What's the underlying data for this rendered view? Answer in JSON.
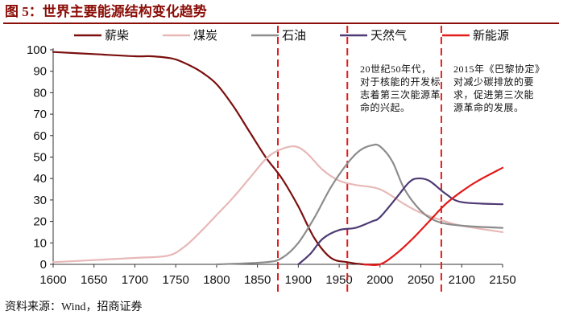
{
  "header": {
    "title": "图 5：世界主要能源结构变化趋势"
  },
  "footer": {
    "source": "资料来源：Wind，招商证券"
  },
  "annotations": {
    "a1950": "20世纪50年代，对于核能的开发标志着第三次能源革命的兴起。",
    "a2015": "2015年《巴黎协定》对减少碳排放的要求，促进第三次能源革命的发展。"
  },
  "chart_data": {
    "type": "line",
    "title": "世界主要能源结构变化趋势",
    "xlabel": "",
    "ylabel": "",
    "xlim": [
      1600,
      2150
    ],
    "ylim": [
      0,
      100
    ],
    "xticks": [
      1600,
      1650,
      1700,
      1750,
      1800,
      1850,
      1900,
      1950,
      2000,
      2050,
      2100,
      2150
    ],
    "yticks": [
      0,
      10,
      20,
      30,
      40,
      50,
      60,
      70,
      80,
      90,
      100
    ],
    "grid": false,
    "legend": "top",
    "vlines": [
      1875,
      1960,
      2075
    ],
    "series": [
      {
        "name": "薪柴",
        "color": "#7B0F0F",
        "points": [
          [
            1600,
            99
          ],
          [
            1650,
            98
          ],
          [
            1700,
            97
          ],
          [
            1720,
            97
          ],
          [
            1745,
            96
          ],
          [
            1760,
            94
          ],
          [
            1780,
            90
          ],
          [
            1800,
            84
          ],
          [
            1820,
            74
          ],
          [
            1840,
            62
          ],
          [
            1860,
            50
          ],
          [
            1880,
            40
          ],
          [
            1900,
            27
          ],
          [
            1920,
            12
          ],
          [
            1940,
            3
          ],
          [
            1960,
            1
          ],
          [
            1980,
            0
          ],
          [
            2000,
            0
          ]
        ]
      },
      {
        "name": "煤炭",
        "color": "#E7B8B7",
        "points": [
          [
            1600,
            1
          ],
          [
            1650,
            2
          ],
          [
            1700,
            3
          ],
          [
            1740,
            4
          ],
          [
            1760,
            8
          ],
          [
            1780,
            15
          ],
          [
            1800,
            23
          ],
          [
            1820,
            31
          ],
          [
            1840,
            40
          ],
          [
            1860,
            49
          ],
          [
            1875,
            53
          ],
          [
            1895,
            55
          ],
          [
            1910,
            52
          ],
          [
            1930,
            44
          ],
          [
            1950,
            39
          ],
          [
            1970,
            37
          ],
          [
            2000,
            35
          ],
          [
            2030,
            28
          ],
          [
            2050,
            24
          ],
          [
            2080,
            20
          ],
          [
            2100,
            18
          ],
          [
            2150,
            15
          ]
        ]
      },
      {
        "name": "石油",
        "color": "#8C8C8C",
        "points": [
          [
            1800,
            0
          ],
          [
            1860,
            1
          ],
          [
            1880,
            3
          ],
          [
            1900,
            10
          ],
          [
            1920,
            22
          ],
          [
            1940,
            36
          ],
          [
            1960,
            47
          ],
          [
            1975,
            53
          ],
          [
            1990,
            55.5
          ],
          [
            2000,
            55
          ],
          [
            2015,
            48
          ],
          [
            2030,
            35
          ],
          [
            2050,
            25
          ],
          [
            2070,
            20
          ],
          [
            2100,
            18
          ],
          [
            2150,
            17
          ]
        ]
      },
      {
        "name": "天然气",
        "color": "#4E3A74",
        "points": [
          [
            1900,
            0
          ],
          [
            1915,
            5
          ],
          [
            1930,
            12
          ],
          [
            1950,
            16
          ],
          [
            1970,
            17
          ],
          [
            1990,
            20
          ],
          [
            2000,
            22
          ],
          [
            2020,
            31
          ],
          [
            2035,
            38
          ],
          [
            2045,
            40
          ],
          [
            2060,
            39
          ],
          [
            2080,
            33
          ],
          [
            2100,
            29
          ],
          [
            2150,
            28
          ]
        ]
      },
      {
        "name": "新能源",
        "color": "#E31B1B",
        "points": [
          [
            1980,
            0
          ],
          [
            2000,
            0
          ],
          [
            2020,
            5
          ],
          [
            2040,
            12
          ],
          [
            2060,
            20
          ],
          [
            2080,
            28
          ],
          [
            2100,
            34
          ],
          [
            2120,
            39
          ],
          [
            2150,
            45
          ]
        ]
      }
    ]
  }
}
